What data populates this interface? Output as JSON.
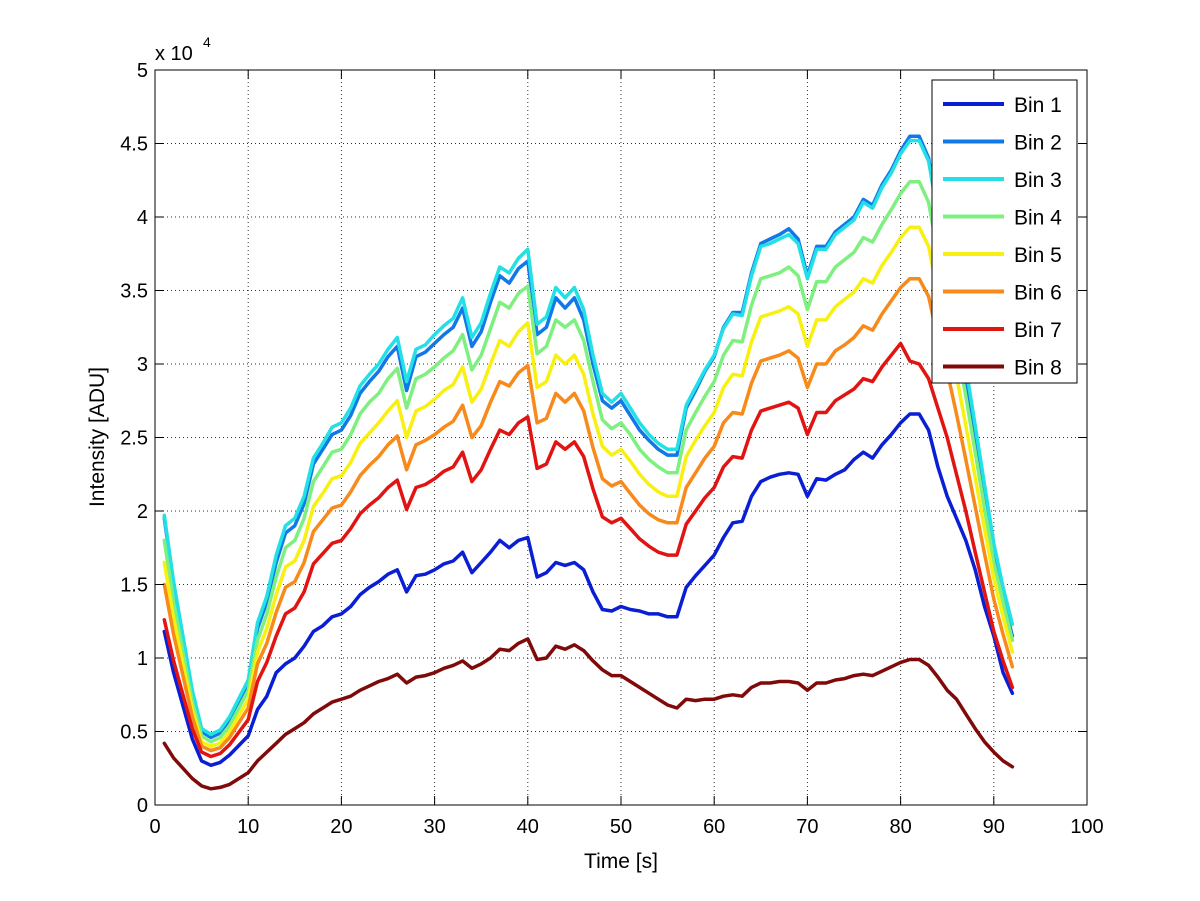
{
  "chart_data": {
    "type": "line",
    "xlabel": "Time [s]",
    "ylabel": "Intensity [ADU]",
    "y_multiplier_label": "x 10",
    "y_multiplier_exponent": "4",
    "xlim": [
      0,
      100
    ],
    "ylim": [
      0,
      5
    ],
    "x_ticks": [
      0,
      10,
      20,
      30,
      40,
      50,
      60,
      70,
      80,
      90,
      100
    ],
    "y_ticks": [
      0,
      0.5,
      1,
      1.5,
      2,
      2.5,
      3,
      3.5,
      4,
      4.5,
      5
    ],
    "x_tick_labels": [
      "0",
      "10",
      "20",
      "30",
      "40",
      "50",
      "60",
      "70",
      "80",
      "90",
      "100"
    ],
    "y_tick_labels": [
      "0",
      "0.5",
      "1",
      "1.5",
      "2",
      "2.5",
      "3",
      "3.5",
      "4",
      "4.5",
      "5"
    ],
    "grid": true,
    "legend_position": "top-right",
    "x": [
      1,
      2,
      4,
      5,
      6,
      7,
      8,
      10,
      11,
      12,
      13,
      14,
      15,
      16,
      17,
      18,
      19,
      20,
      21,
      22,
      23,
      24,
      25,
      26,
      27,
      28,
      29,
      30,
      31,
      32,
      33,
      34,
      35,
      36,
      37,
      38,
      39,
      40,
      41,
      42,
      43,
      44,
      45,
      46,
      47,
      48,
      49,
      50,
      51,
      52,
      53,
      54,
      55,
      56,
      57,
      58,
      59,
      60,
      61,
      62,
      63,
      64,
      65,
      66,
      67,
      68,
      69,
      70,
      71,
      72,
      73,
      74,
      75,
      76,
      77,
      78,
      79,
      80,
      81,
      82,
      83,
      84,
      85,
      86,
      87,
      88,
      89,
      90,
      91,
      92
    ],
    "series": [
      {
        "name": "Bin 1",
        "color": "#0a1fd4",
        "values": [
          1.18,
          0.9,
          0.45,
          0.3,
          0.27,
          0.29,
          0.34,
          0.47,
          0.65,
          0.74,
          0.9,
          0.96,
          1.0,
          1.08,
          1.18,
          1.22,
          1.28,
          1.3,
          1.35,
          1.43,
          1.48,
          1.52,
          1.57,
          1.6,
          1.45,
          1.56,
          1.57,
          1.6,
          1.64,
          1.66,
          1.72,
          1.58,
          1.65,
          1.72,
          1.8,
          1.75,
          1.8,
          1.82,
          1.55,
          1.58,
          1.65,
          1.63,
          1.65,
          1.6,
          1.45,
          1.33,
          1.32,
          1.35,
          1.33,
          1.32,
          1.3,
          1.3,
          1.28,
          1.28,
          1.48,
          1.56,
          1.63,
          1.7,
          1.82,
          1.92,
          1.93,
          2.1,
          2.2,
          2.23,
          2.25,
          2.26,
          2.25,
          2.1,
          2.22,
          2.21,
          2.25,
          2.28,
          2.35,
          2.4,
          2.36,
          2.45,
          2.52,
          2.6,
          2.66,
          2.66,
          2.55,
          2.3,
          2.1,
          1.95,
          1.8,
          1.6,
          1.35,
          1.15,
          0.9,
          0.76
        ]
      },
      {
        "name": "Bin 2",
        "color": "#1178e8",
        "values": [
          1.95,
          1.5,
          0.75,
          0.5,
          0.46,
          0.49,
          0.58,
          0.82,
          1.2,
          1.38,
          1.65,
          1.85,
          1.9,
          2.05,
          2.32,
          2.42,
          2.52,
          2.55,
          2.65,
          2.8,
          2.88,
          2.95,
          3.05,
          3.12,
          2.82,
          3.05,
          3.08,
          3.14,
          3.2,
          3.25,
          3.38,
          3.12,
          3.22,
          3.42,
          3.6,
          3.55,
          3.65,
          3.7,
          3.2,
          3.25,
          3.45,
          3.38,
          3.45,
          3.3,
          3.0,
          2.75,
          2.7,
          2.75,
          2.65,
          2.55,
          2.48,
          2.42,
          2.38,
          2.38,
          2.7,
          2.82,
          2.95,
          3.05,
          3.25,
          3.35,
          3.35,
          3.62,
          3.82,
          3.85,
          3.88,
          3.92,
          3.85,
          3.6,
          3.8,
          3.8,
          3.9,
          3.95,
          4.0,
          4.12,
          4.08,
          4.22,
          4.32,
          4.45,
          4.55,
          4.55,
          4.4,
          4.0,
          3.7,
          3.3,
          2.9,
          2.5,
          2.1,
          1.7,
          1.4,
          1.15
        ]
      },
      {
        "name": "Bin 3",
        "color": "#22e0e6",
        "values": [
          1.97,
          1.52,
          0.78,
          0.52,
          0.48,
          0.51,
          0.6,
          0.85,
          1.24,
          1.42,
          1.7,
          1.9,
          1.95,
          2.1,
          2.36,
          2.46,
          2.57,
          2.6,
          2.7,
          2.85,
          2.93,
          3.0,
          3.1,
          3.18,
          2.88,
          3.1,
          3.13,
          3.2,
          3.26,
          3.31,
          3.45,
          3.18,
          3.28,
          3.48,
          3.66,
          3.62,
          3.72,
          3.78,
          3.27,
          3.32,
          3.52,
          3.45,
          3.52,
          3.37,
          3.06,
          2.8,
          2.74,
          2.8,
          2.7,
          2.6,
          2.52,
          2.46,
          2.42,
          2.42,
          2.72,
          2.84,
          2.96,
          3.06,
          3.24,
          3.34,
          3.33,
          3.6,
          3.8,
          3.82,
          3.85,
          3.88,
          3.82,
          3.58,
          3.78,
          3.78,
          3.88,
          3.93,
          3.98,
          4.1,
          4.06,
          4.2,
          4.3,
          4.43,
          4.52,
          4.52,
          4.38,
          4.02,
          3.75,
          3.38,
          2.98,
          2.58,
          2.18,
          1.78,
          1.48,
          1.23
        ]
      },
      {
        "name": "Bin 4",
        "color": "#7ef080",
        "values": [
          1.8,
          1.38,
          0.7,
          0.47,
          0.43,
          0.46,
          0.54,
          0.78,
          1.12,
          1.3,
          1.55,
          1.75,
          1.8,
          1.95,
          2.2,
          2.3,
          2.4,
          2.42,
          2.52,
          2.66,
          2.74,
          2.8,
          2.9,
          2.97,
          2.7,
          2.9,
          2.93,
          2.98,
          3.04,
          3.09,
          3.2,
          2.96,
          3.06,
          3.24,
          3.42,
          3.38,
          3.48,
          3.53,
          3.07,
          3.12,
          3.3,
          3.25,
          3.3,
          3.16,
          2.88,
          2.62,
          2.56,
          2.6,
          2.52,
          2.42,
          2.35,
          2.3,
          2.26,
          2.26,
          2.55,
          2.67,
          2.78,
          2.88,
          3.06,
          3.16,
          3.15,
          3.4,
          3.58,
          3.6,
          3.62,
          3.66,
          3.6,
          3.37,
          3.56,
          3.56,
          3.66,
          3.71,
          3.76,
          3.86,
          3.83,
          3.95,
          4.05,
          4.16,
          4.24,
          4.24,
          4.1,
          3.75,
          3.5,
          3.15,
          2.78,
          2.4,
          2.02,
          1.65,
          1.38,
          1.12
        ]
      },
      {
        "name": "Bin 5",
        "color": "#f8f010",
        "values": [
          1.65,
          1.27,
          0.65,
          0.43,
          0.4,
          0.42,
          0.5,
          0.72,
          1.04,
          1.2,
          1.43,
          1.62,
          1.66,
          1.8,
          2.03,
          2.12,
          2.22,
          2.24,
          2.33,
          2.46,
          2.53,
          2.6,
          2.68,
          2.75,
          2.5,
          2.68,
          2.71,
          2.76,
          2.82,
          2.86,
          2.98,
          2.74,
          2.83,
          3.0,
          3.16,
          3.12,
          3.22,
          3.28,
          2.84,
          2.88,
          3.06,
          3.0,
          3.06,
          2.93,
          2.66,
          2.44,
          2.38,
          2.42,
          2.34,
          2.25,
          2.18,
          2.13,
          2.1,
          2.1,
          2.37,
          2.48,
          2.58,
          2.67,
          2.84,
          2.93,
          2.92,
          3.15,
          3.32,
          3.34,
          3.36,
          3.39,
          3.34,
          3.12,
          3.3,
          3.3,
          3.39,
          3.44,
          3.49,
          3.58,
          3.55,
          3.67,
          3.76,
          3.86,
          3.93,
          3.93,
          3.8,
          3.48,
          3.24,
          2.92,
          2.58,
          2.23,
          1.88,
          1.54,
          1.28,
          1.04
        ]
      },
      {
        "name": "Bin 6",
        "color": "#f78a1a",
        "values": [
          1.5,
          1.16,
          0.6,
          0.4,
          0.37,
          0.39,
          0.46,
          0.66,
          0.96,
          1.1,
          1.31,
          1.48,
          1.52,
          1.65,
          1.86,
          1.94,
          2.02,
          2.04,
          2.13,
          2.24,
          2.31,
          2.37,
          2.45,
          2.51,
          2.28,
          2.45,
          2.48,
          2.52,
          2.57,
          2.61,
          2.72,
          2.5,
          2.58,
          2.74,
          2.88,
          2.85,
          2.94,
          2.99,
          2.6,
          2.63,
          2.8,
          2.74,
          2.8,
          2.68,
          2.43,
          2.22,
          2.17,
          2.2,
          2.12,
          2.04,
          1.98,
          1.94,
          1.92,
          1.92,
          2.16,
          2.26,
          2.36,
          2.44,
          2.6,
          2.67,
          2.66,
          2.87,
          3.02,
          3.04,
          3.06,
          3.09,
          3.04,
          2.84,
          3.0,
          3.0,
          3.09,
          3.13,
          3.18,
          3.26,
          3.23,
          3.34,
          3.43,
          3.52,
          3.58,
          3.58,
          3.46,
          3.17,
          2.95,
          2.66,
          2.35,
          2.03,
          1.71,
          1.4,
          1.16,
          0.94
        ]
      },
      {
        "name": "Bin 7",
        "color": "#e21412",
        "values": [
          1.26,
          0.98,
          0.52,
          0.36,
          0.33,
          0.35,
          0.41,
          0.58,
          0.84,
          0.97,
          1.15,
          1.3,
          1.34,
          1.45,
          1.64,
          1.71,
          1.78,
          1.8,
          1.88,
          1.98,
          2.04,
          2.09,
          2.16,
          2.21,
          2.01,
          2.16,
          2.18,
          2.22,
          2.27,
          2.3,
          2.4,
          2.2,
          2.28,
          2.42,
          2.55,
          2.52,
          2.6,
          2.64,
          2.29,
          2.32,
          2.47,
          2.42,
          2.47,
          2.37,
          2.15,
          1.96,
          1.92,
          1.95,
          1.88,
          1.81,
          1.76,
          1.72,
          1.7,
          1.7,
          1.91,
          2.0,
          2.09,
          2.16,
          2.3,
          2.37,
          2.36,
          2.55,
          2.68,
          2.7,
          2.72,
          2.74,
          2.7,
          2.52,
          2.67,
          2.67,
          2.75,
          2.79,
          2.83,
          2.9,
          2.88,
          2.98,
          3.06,
          3.14,
          3.02,
          3.0,
          2.9,
          2.7,
          2.5,
          2.25,
          2.0,
          1.72,
          1.45,
          1.18,
          0.98,
          0.8
        ]
      },
      {
        "name": "Bin 8",
        "color": "#800a0a",
        "values": [
          0.42,
          0.32,
          0.18,
          0.13,
          0.11,
          0.12,
          0.14,
          0.22,
          0.3,
          0.36,
          0.42,
          0.48,
          0.52,
          0.56,
          0.62,
          0.66,
          0.7,
          0.72,
          0.74,
          0.78,
          0.81,
          0.84,
          0.86,
          0.89,
          0.83,
          0.87,
          0.88,
          0.9,
          0.93,
          0.95,
          0.98,
          0.93,
          0.96,
          1.0,
          1.06,
          1.05,
          1.1,
          1.13,
          0.99,
          1.0,
          1.08,
          1.06,
          1.09,
          1.05,
          0.98,
          0.92,
          0.88,
          0.88,
          0.84,
          0.8,
          0.76,
          0.72,
          0.68,
          0.66,
          0.72,
          0.71,
          0.72,
          0.72,
          0.74,
          0.75,
          0.74,
          0.8,
          0.83,
          0.83,
          0.84,
          0.84,
          0.83,
          0.78,
          0.83,
          0.83,
          0.85,
          0.86,
          0.88,
          0.89,
          0.88,
          0.91,
          0.94,
          0.97,
          0.99,
          0.99,
          0.95,
          0.87,
          0.78,
          0.72,
          0.62,
          0.52,
          0.43,
          0.36,
          0.3,
          0.26
        ]
      }
    ]
  }
}
